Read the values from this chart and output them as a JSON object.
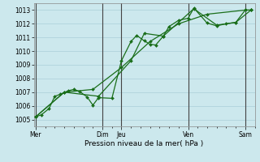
{
  "bg_color": "#cce8ed",
  "grid_color": "#aacfd8",
  "line_color": "#1a6e1a",
  "marker_color": "#1a6e1a",
  "xlabel": "Pression niveau de la mer( hPa )",
  "ylim": [
    1004.5,
    1013.5
  ],
  "yticks": [
    1005,
    1006,
    1007,
    1008,
    1009,
    1010,
    1011,
    1012,
    1013
  ],
  "day_labels": [
    "Mer",
    "Dim",
    "Jeu",
    "Ven",
    "Sam"
  ],
  "day_positions": [
    0,
    3.5,
    4.5,
    8.0,
    11.0
  ],
  "xlim": [
    -0.1,
    11.5
  ],
  "vline_color": "#444444",
  "vline_positions": [
    0.0,
    3.5,
    4.5,
    8.0,
    11.0
  ],
  "series": [
    [
      0.0,
      1005.2,
      0.3,
      1005.35,
      0.7,
      1005.8,
      1.0,
      1006.7,
      1.3,
      1006.85,
      1.7,
      1007.1,
      2.0,
      1007.2,
      2.3,
      1007.05,
      2.7,
      1006.65,
      3.0,
      1006.05,
      3.3,
      1006.6,
      4.0,
      1006.55,
      4.5,
      1009.3,
      5.0,
      1010.7,
      5.3,
      1011.15,
      5.7,
      1010.75,
      6.0,
      1010.5,
      6.3,
      1010.45,
      6.7,
      1011.1,
      7.0,
      1011.8,
      7.5,
      1012.25,
      8.0,
      1012.4,
      8.3,
      1013.15,
      9.0,
      1012.05,
      9.5,
      1011.85,
      10.0,
      1012.0,
      10.5,
      1012.1,
      11.0,
      1013.0,
      11.3,
      1013.0
    ],
    [
      0.0,
      1005.2,
      1.5,
      1007.0,
      3.0,
      1007.2,
      4.5,
      1008.8,
      6.0,
      1010.7,
      7.5,
      1012.0,
      9.0,
      1012.7,
      11.0,
      1013.0,
      11.3,
      1013.0
    ],
    [
      0.0,
      1005.2,
      1.5,
      1007.0,
      3.3,
      1006.7,
      5.0,
      1009.3,
      5.7,
      1011.3,
      6.7,
      1011.1,
      8.3,
      1013.1,
      9.5,
      1011.9,
      10.5,
      1012.1,
      11.3,
      1013.0
    ]
  ]
}
